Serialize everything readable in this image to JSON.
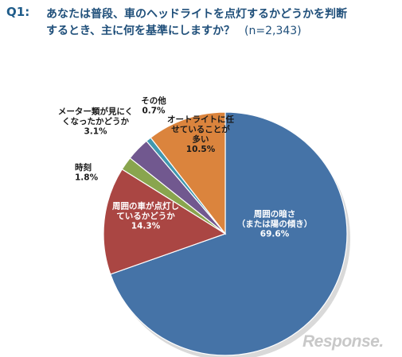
{
  "question": {
    "number": "Q1:",
    "line1": "あなたは普段、車のヘッドライトを点灯するかどうかを判断",
    "line2": "するとき、主に何を基準にしますか？",
    "n": "(n=2,343)"
  },
  "chart_data": {
    "type": "pie",
    "slices": [
      {
        "label": [
          "周囲の暗さ",
          "（または陽の傾き）"
        ],
        "value": 69.6,
        "value_text": "69.6%",
        "color": "#4573a7",
        "text_color": "#ffffff"
      },
      {
        "label": [
          "周囲の車が点灯し",
          "ているかどうか"
        ],
        "value": 14.3,
        "value_text": "14.3%",
        "color": "#aa4643",
        "text_color": "#ffffff"
      },
      {
        "label": [
          "時刻"
        ],
        "value": 1.8,
        "value_text": "1.8%",
        "color": "#89a54e",
        "text_color": "#1a1a1a"
      },
      {
        "label": [
          "メーター類が見にく",
          "くなったかどうか"
        ],
        "value": 3.1,
        "value_text": "3.1%",
        "color": "#71588f",
        "text_color": "#1a1a1a"
      },
      {
        "label": [
          "その他"
        ],
        "value": 0.7,
        "value_text": "0.7%",
        "color": "#4198af",
        "text_color": "#1a1a1a"
      },
      {
        "label": [
          "オートライトに任",
          "せていることが",
          "多い"
        ],
        "value": 10.5,
        "value_text": "10.5%",
        "color": "#db843d",
        "text_color": "#1a1a1a"
      }
    ]
  },
  "watermark": "Response."
}
